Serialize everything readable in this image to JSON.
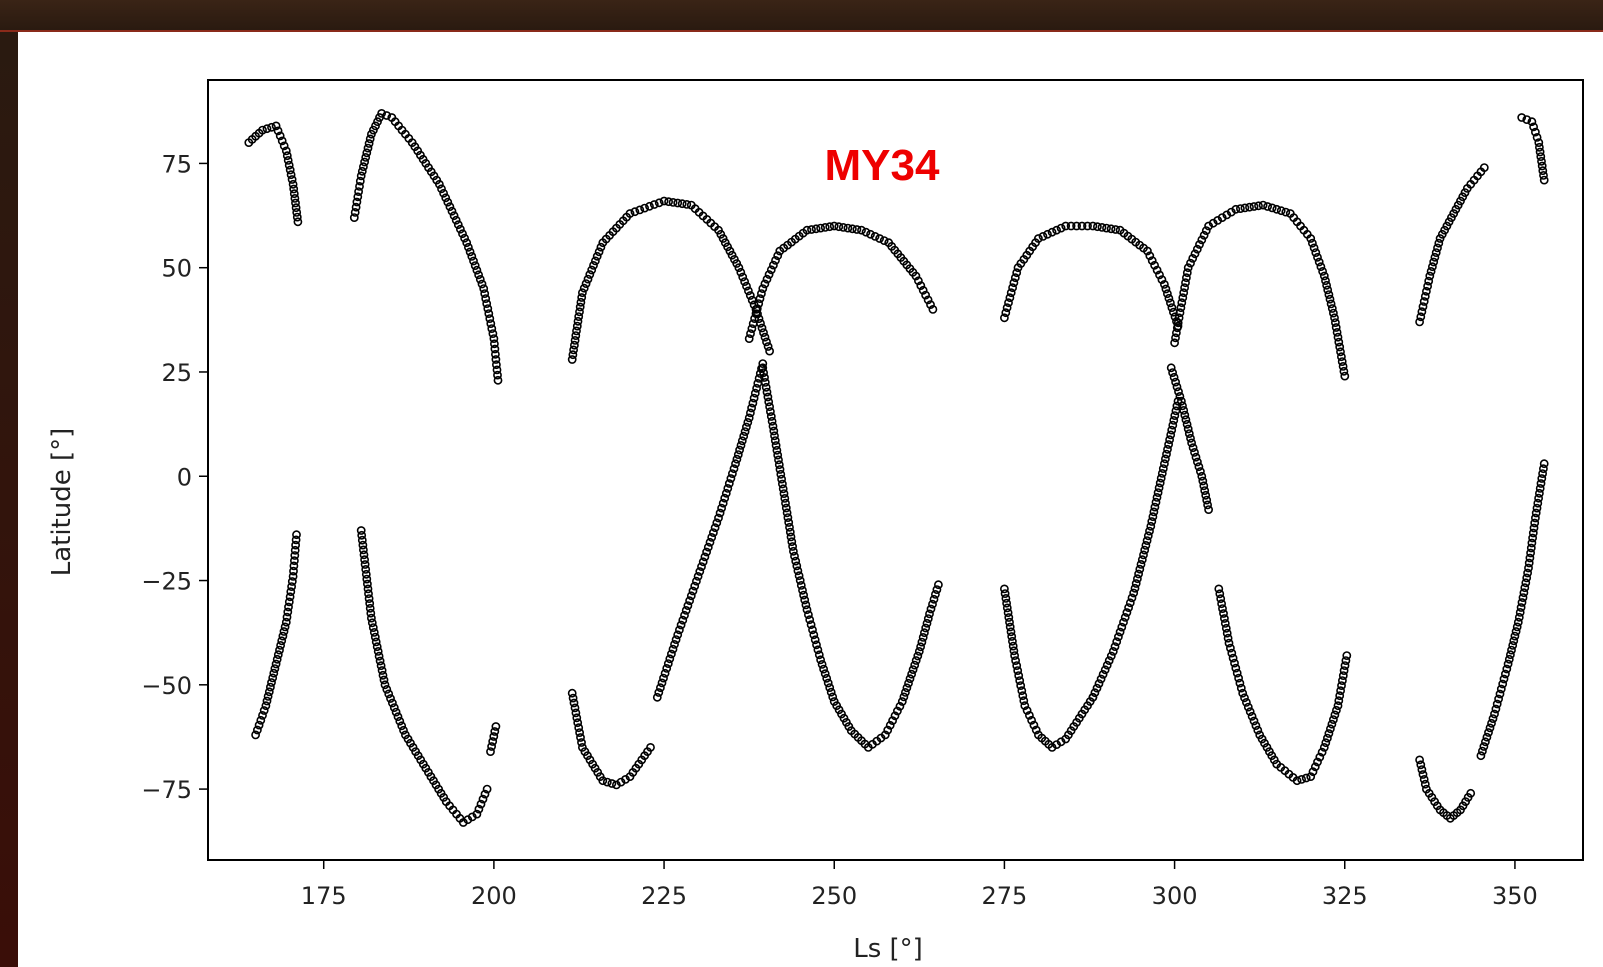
{
  "chart_data": {
    "type": "scatter",
    "title": "",
    "annotation": "MY34",
    "xlabel": "Ls [°]",
    "ylabel": "Latitude [°]",
    "xlim": [
      158,
      360
    ],
    "ylim": [
      -92,
      95
    ],
    "xticks": [
      175,
      200,
      225,
      250,
      275,
      300,
      325,
      350
    ],
    "yticks": [
      -75,
      -50,
      -25,
      0,
      25,
      50,
      75
    ],
    "xtick_labels": [
      "175",
      "200",
      "225",
      "250",
      "275",
      "300",
      "325",
      "350"
    ],
    "ytick_labels": [
      "−75",
      "−50",
      "−25",
      "0",
      "25",
      "50",
      "75"
    ],
    "grid": false,
    "marker": "open-circle",
    "color": "#000000",
    "segments": [
      {
        "x": [
          164,
          166,
          168,
          169.5,
          170.5,
          171.2
        ],
        "y": [
          80,
          83,
          84,
          78,
          70,
          61
        ]
      },
      {
        "x": [
          179.5,
          180.5,
          182,
          183.5,
          185,
          188,
          192,
          196,
          198.5,
          200,
          200.6
        ],
        "y": [
          62,
          72,
          82,
          87,
          86,
          80,
          70,
          56,
          45,
          33,
          23
        ]
      },
      {
        "x": [
          211.5,
          213,
          216,
          220,
          225,
          229,
          233,
          236,
          238.5,
          240.5
        ],
        "y": [
          28,
          44,
          56,
          63,
          66,
          65,
          59,
          50,
          40,
          30
        ]
      },
      {
        "x": [
          211.5,
          213,
          216,
          218,
          220,
          223
        ],
        "y": [
          -52,
          -65,
          -73,
          -74,
          -72,
          -65
        ]
      },
      {
        "x": [
          165,
          166.5,
          168,
          169.5,
          170.5,
          171
        ],
        "y": [
          -62,
          -55,
          -45,
          -35,
          -24,
          -14
        ]
      },
      {
        "x": [
          180.5,
          182,
          184,
          187,
          190,
          193,
          195.5,
          197.5,
          199
        ],
        "y": [
          -13,
          -34,
          -50,
          -62,
          -70,
          -78,
          -83,
          -81,
          -75
        ]
      },
      {
        "x": [
          199.5,
          200.3
        ],
        "y": [
          -66,
          -60
        ]
      },
      {
        "x": [
          224,
          227,
          230,
          233,
          235.5,
          237.5,
          239.5
        ],
        "y": [
          -53,
          -38,
          -24,
          -10,
          3,
          14,
          27
        ]
      },
      {
        "x": [
          237.5,
          239.5,
          242,
          246,
          250,
          254,
          258,
          262,
          264.5
        ],
        "y": [
          33,
          45,
          54,
          59,
          60,
          59,
          56,
          48,
          40
        ]
      },
      {
        "x": [
          239.5,
          241,
          242.5,
          244,
          246,
          248,
          250,
          252.5,
          255,
          257.5,
          260,
          262.5,
          264,
          265.3
        ],
        "y": [
          26,
          12,
          -3,
          -18,
          -32,
          -44,
          -54,
          -61,
          -65,
          -62,
          -54,
          -42,
          -33,
          -26
        ]
      },
      {
        "x": [
          275,
          277,
          280,
          284,
          288,
          292,
          296,
          298.5,
          300.5
        ],
        "y": [
          38,
          50,
          57,
          60,
          60,
          59,
          54,
          46,
          36
        ]
      },
      {
        "x": [
          300,
          302,
          305,
          309,
          313,
          317,
          320,
          322,
          323.5,
          325
        ],
        "y": [
          32,
          50,
          60,
          64,
          65,
          63,
          57,
          48,
          38,
          24
        ]
      },
      {
        "x": [
          299.5,
          301,
          302.5,
          304,
          305
        ],
        "y": [
          26,
          18,
          8,
          0,
          -8
        ]
      },
      {
        "x": [
          275,
          276.5,
          278,
          280,
          282,
          284,
          286,
          288
        ],
        "y": [
          -27,
          -43,
          -55,
          -62,
          -65,
          -63,
          -58,
          -53
        ]
      },
      {
        "x": [
          288,
          291,
          294,
          296.5,
          298.5,
          300.5
        ],
        "y": [
          -53,
          -42,
          -28,
          -12,
          3,
          18
        ]
      },
      {
        "x": [
          306.5,
          308,
          310,
          312.5,
          315,
          318,
          320,
          322,
          324,
          325.3
        ],
        "y": [
          -27,
          -40,
          -52,
          -62,
          -69,
          -73,
          -72,
          -65,
          -55,
          -43
        ]
      },
      {
        "x": [
          336,
          337,
          339,
          340.5,
          342,
          343.5
        ],
        "y": [
          -68,
          -75,
          -80,
          -82,
          -80,
          -76
        ]
      },
      {
        "x": [
          345,
          347,
          349,
          350.5,
          352,
          353,
          354.3
        ],
        "y": [
          -67,
          -57,
          -45,
          -35,
          -22,
          -10,
          3
        ]
      },
      {
        "x": [
          336,
          337.5,
          339,
          341,
          343,
          345.5
        ],
        "y": [
          37,
          48,
          57,
          63,
          69,
          74
        ]
      },
      {
        "x": [
          351,
          352.5,
          353.5,
          354.3
        ],
        "y": [
          86,
          85,
          80,
          71
        ]
      }
    ]
  }
}
